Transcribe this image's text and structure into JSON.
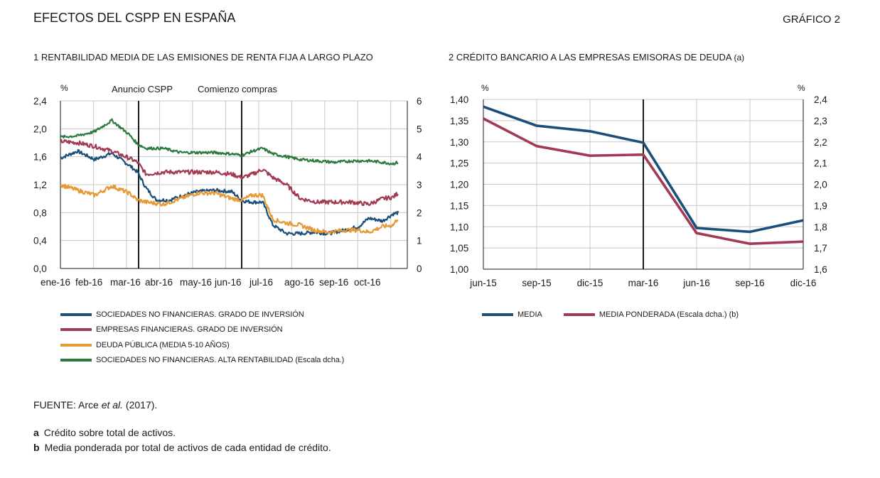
{
  "header": {
    "title": "EFECTOS DEL CSPP EN ESPAÑA",
    "figure_label": "GRÁFICO 2"
  },
  "colors": {
    "navy": "#1b4f7a",
    "red": "#a23a53",
    "orange": "#e69a35",
    "green": "#2d7a3f",
    "grid": "#c8c8c8",
    "axis": "#1a1a1a"
  },
  "chart_data": [
    {
      "type": "line",
      "title": "1  RENTABILIDAD MEDIA DE LAS EMISIONES DE RENTA FIJA A LARGO PLAZO",
      "x": [
        "ene-16",
        "feb-16",
        "mar-16",
        "abr-16",
        "may-16",
        "jun-16",
        "jul-16",
        "ago-16",
        "sep-16",
        "oct-16"
      ],
      "ylabel_left": "%",
      "ylim_left": [
        0,
        2.4
      ],
      "yticks_left": [
        "0,0",
        "0,4",
        "0,8",
        "1,2",
        "1,6",
        "2,0",
        "2,4"
      ],
      "ylim_right": [
        0,
        6
      ],
      "yticks_right": [
        "0",
        "1",
        "2",
        "3",
        "4",
        "5",
        "6"
      ],
      "annotations": [
        {
          "text": "Anuncio CSPP",
          "x": 2.25
        },
        {
          "text": "Comienzo compras",
          "x": 5.3
        }
      ],
      "series": [
        {
          "name": "SOCIEDADES NO FINANCIERAS. GRADO DE INVERSIÓN",
          "color": "#1b4f7a",
          "axis": "left",
          "jitter": 0.025,
          "points": [
            [
              0,
              1.58
            ],
            [
              0.5,
              1.68
            ],
            [
              1,
              1.56
            ],
            [
              1.5,
              1.65
            ],
            [
              2,
              1.48
            ],
            [
              2.25,
              1.38
            ],
            [
              2.5,
              1.15
            ],
            [
              2.8,
              0.98
            ],
            [
              3.2,
              0.98
            ],
            [
              3.6,
              1.05
            ],
            [
              4,
              1.1
            ],
            [
              4.5,
              1.12
            ],
            [
              5,
              1.1
            ],
            [
              5.3,
              0.97
            ],
            [
              5.6,
              0.95
            ],
            [
              5.9,
              0.95
            ],
            [
              6.2,
              0.62
            ],
            [
              6.6,
              0.5
            ],
            [
              7,
              0.5
            ],
            [
              7.4,
              0.52
            ],
            [
              7.8,
              0.5
            ],
            [
              8.3,
              0.55
            ],
            [
              8.7,
              0.6
            ],
            [
              9.0,
              0.72
            ],
            [
              9.4,
              0.68
            ],
            [
              9.7,
              0.78
            ],
            [
              9.85,
              0.8
            ]
          ]
        },
        {
          "name": "EMPRESAS FINANCIERAS. GRADO DE INVERSIÓN",
          "color": "#a23a53",
          "axis": "left",
          "jitter": 0.03,
          "points": [
            [
              0,
              1.82
            ],
            [
              0.5,
              1.8
            ],
            [
              1,
              1.75
            ],
            [
              1.5,
              1.68
            ],
            [
              2,
              1.58
            ],
            [
              2.25,
              1.52
            ],
            [
              2.5,
              1.35
            ],
            [
              3,
              1.38
            ],
            [
              3.5,
              1.38
            ],
            [
              4,
              1.38
            ],
            [
              4.5,
              1.38
            ],
            [
              5,
              1.35
            ],
            [
              5.3,
              1.3
            ],
            [
              5.6,
              1.35
            ],
            [
              5.9,
              1.42
            ],
            [
              6.2,
              1.3
            ],
            [
              6.6,
              1.2
            ],
            [
              7,
              1.0
            ],
            [
              7.5,
              0.95
            ],
            [
              8,
              0.95
            ],
            [
              8.5,
              0.95
            ],
            [
              9,
              0.92
            ],
            [
              9.4,
              1.0
            ],
            [
              9.7,
              1.02
            ],
            [
              9.85,
              1.08
            ]
          ]
        },
        {
          "name": "DEUDA PÚBLICA (MEDIA 5-10 AÑOS)",
          "color": "#e69a35",
          "axis": "left",
          "jitter": 0.03,
          "points": [
            [
              0,
              1.2
            ],
            [
              0.5,
              1.12
            ],
            [
              1,
              1.05
            ],
            [
              1.5,
              1.18
            ],
            [
              2,
              1.08
            ],
            [
              2.25,
              0.98
            ],
            [
              2.5,
              0.95
            ],
            [
              3,
              0.92
            ],
            [
              3.5,
              1.0
            ],
            [
              4,
              1.08
            ],
            [
              4.5,
              1.08
            ],
            [
              5,
              1.0
            ],
            [
              5.3,
              0.98
            ],
            [
              5.6,
              1.05
            ],
            [
              5.9,
              1.05
            ],
            [
              6.2,
              0.7
            ],
            [
              6.6,
              0.65
            ],
            [
              7,
              0.62
            ],
            [
              7.4,
              0.55
            ],
            [
              7.8,
              0.52
            ],
            [
              8.3,
              0.55
            ],
            [
              8.7,
              0.55
            ],
            [
              9.0,
              0.52
            ],
            [
              9.4,
              0.6
            ],
            [
              9.7,
              0.62
            ],
            [
              9.85,
              0.72
            ]
          ]
        },
        {
          "name": "SOCIEDADES NO FINANCIERAS. ALTA RENTABILIDAD (Escala dcha.)",
          "color": "#2d7a3f",
          "axis": "right",
          "jitter": 0.05,
          "points": [
            [
              0,
              4.7
            ],
            [
              0.5,
              4.75
            ],
            [
              1,
              4.9
            ],
            [
              1.5,
              5.3
            ],
            [
              2,
              4.8
            ],
            [
              2.25,
              4.45
            ],
            [
              2.5,
              4.3
            ],
            [
              3,
              4.3
            ],
            [
              3.5,
              4.15
            ],
            [
              4,
              4.15
            ],
            [
              4.5,
              4.15
            ],
            [
              5,
              4.1
            ],
            [
              5.3,
              4.05
            ],
            [
              5.6,
              4.2
            ],
            [
              5.9,
              4.3
            ],
            [
              6.2,
              4.1
            ],
            [
              6.6,
              4.0
            ],
            [
              7,
              3.9
            ],
            [
              7.5,
              3.85
            ],
            [
              8,
              3.8
            ],
            [
              8.5,
              3.85
            ],
            [
              9,
              3.85
            ],
            [
              9.4,
              3.8
            ],
            [
              9.7,
              3.75
            ],
            [
              9.85,
              3.8
            ]
          ]
        }
      ]
    },
    {
      "type": "line",
      "title": "2  CRÉDITO BANCARIO A LAS EMPRESAS EMISORAS DE DEUDA",
      "title_suffix": "(a)",
      "x": [
        "jun-15",
        "sep-15",
        "dic-15",
        "mar-16",
        "jun-16",
        "sep-16",
        "dic-16"
      ],
      "ylabel_left": "%",
      "ylabel_right": "%",
      "ylim_left": [
        1.0,
        1.4
      ],
      "yticks_left": [
        "1,00",
        "1,05",
        "1,10",
        "1,15",
        "1,20",
        "1,25",
        "1,30",
        "1,35",
        "1,40"
      ],
      "ylim_right": [
        1.6,
        2.4
      ],
      "yticks_right": [
        "1,6",
        "1,7",
        "1,8",
        "1,9",
        "2,0",
        "2,1",
        "2,2",
        "2,3",
        "2,4"
      ],
      "marker_x": 3,
      "series": [
        {
          "name": "MEDIA",
          "color": "#1b4f7a",
          "axis": "left",
          "values": [
            1.383,
            1.338,
            1.325,
            1.298,
            1.097,
            1.088,
            1.115
          ]
        },
        {
          "name": "MEDIA PONDERADA (Escala dcha.) (b)",
          "color": "#a23a53",
          "axis": "right",
          "values": [
            2.31,
            2.18,
            2.135,
            2.14,
            1.77,
            1.72,
            1.73
          ]
        }
      ]
    }
  ],
  "footer": {
    "source_prefix": "FUENTE: Arce ",
    "source_italic": "et al.",
    "source_suffix": " (2017).",
    "notes": [
      {
        "key": "a",
        "text": "Crédito sobre total de activos."
      },
      {
        "key": "b",
        "text": "Media ponderada por total de activos de cada entidad de crédito."
      }
    ]
  }
}
